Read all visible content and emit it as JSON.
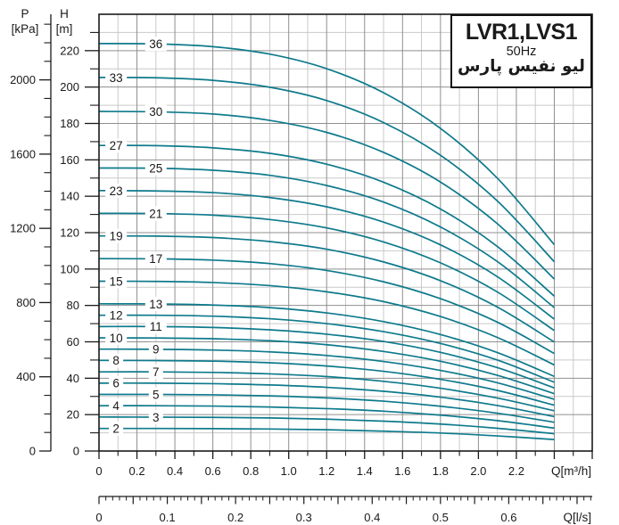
{
  "title_box": {
    "model": "LVR1,LVS1",
    "frequency": "50Hz",
    "brand": "لیو نفیس پارس"
  },
  "axes": {
    "pressure": {
      "name": "P",
      "unit": "[kPa]",
      "tick_labels": [
        0,
        400,
        800,
        1200,
        1600,
        2000
      ],
      "minor_step": 100,
      "minor_max": 2300
    },
    "head": {
      "name": "H",
      "unit": "[m]",
      "tick_labels": [
        0,
        20,
        40,
        60,
        80,
        100,
        120,
        140,
        160,
        180,
        200,
        220
      ],
      "minor_step": 10,
      "minor_max": 230
    },
    "flow_m3h": {
      "label": "Q[m³/h]",
      "tick_labels": [
        "0",
        "0.2",
        "0.4",
        "0.6",
        "0.8",
        "1.0",
        "1.2",
        "1.4",
        "1.6",
        "1.8",
        "2.0",
        "2.2"
      ],
      "label_step": 0.2,
      "minor_step": 0.1,
      "axis_max": 2.6
    },
    "flow_ls": {
      "label": "Q[l/s]",
      "tick_labels": [
        "0",
        "0.1",
        "0.2",
        "0.3",
        "0.4",
        "0.5",
        "0.6"
      ],
      "label_step": 0.1,
      "minor_step": 0.01,
      "minor_max": 0.72
    }
  },
  "chart_data": {
    "type": "line",
    "title": "LVR1,LVS1 50Hz",
    "xlabel": "Q[m³/h]",
    "x2label": "Q[l/s]",
    "ylabel": "H [m]",
    "y2label": "P [kPa]",
    "xlim": [
      0,
      2.6
    ],
    "ylim": [
      0,
      240
    ],
    "grid": "on",
    "legend": "labels-on-curves",
    "x": [
      0,
      0.3,
      0.6,
      0.9,
      1.2,
      1.5,
      1.8,
      2.1,
      2.4
    ],
    "series": [
      {
        "name": "2",
        "stages": 2,
        "label_q": 0.09,
        "values": [
          12.4,
          12.4,
          12.3,
          12.1,
          11.7,
          10.9,
          9.9,
          8.3,
          6.3
        ]
      },
      {
        "name": "3",
        "stages": 3,
        "label_q": 0.3,
        "values": [
          18.7,
          18.6,
          18.5,
          18.2,
          17.5,
          16.4,
          14.8,
          12.5,
          9.5
        ]
      },
      {
        "name": "4",
        "stages": 4,
        "label_q": 0.09,
        "values": [
          24.9,
          24.9,
          24.7,
          24.2,
          23.3,
          21.9,
          19.7,
          16.7,
          12.6
        ]
      },
      {
        "name": "5",
        "stages": 5,
        "label_q": 0.3,
        "values": [
          31.1,
          31.1,
          30.9,
          30.3,
          29.2,
          27.4,
          24.6,
          20.8,
          15.8
        ]
      },
      {
        "name": "6",
        "stages": 6,
        "label_q": 0.09,
        "values": [
          37.3,
          37.3,
          37.0,
          36.3,
          35.0,
          32.8,
          29.6,
          25.0,
          18.9
        ]
      },
      {
        "name": "7",
        "stages": 7,
        "label_q": 0.3,
        "values": [
          43.5,
          43.5,
          43.2,
          42.4,
          40.9,
          38.3,
          34.5,
          29.1,
          22.1
        ]
      },
      {
        "name": "8",
        "stages": 8,
        "label_q": 0.09,
        "values": [
          49.8,
          49.7,
          49.4,
          48.5,
          46.7,
          43.8,
          39.4,
          33.3,
          25.2
        ]
      },
      {
        "name": "9",
        "stages": 9,
        "label_q": 0.3,
        "values": [
          56.0,
          55.9,
          55.5,
          54.5,
          52.5,
          49.2,
          44.3,
          37.5,
          28.4
        ]
      },
      {
        "name": "10",
        "stages": 10,
        "label_q": 0.09,
        "values": [
          62.2,
          62.1,
          61.7,
          60.6,
          58.4,
          54.7,
          49.3,
          41.6,
          31.5
        ]
      },
      {
        "name": "11",
        "stages": 11,
        "label_q": 0.3,
        "values": [
          68.4,
          68.4,
          67.9,
          66.6,
          64.2,
          60.2,
          54.2,
          45.8,
          34.7
        ]
      },
      {
        "name": "12",
        "stages": 12,
        "label_q": 0.09,
        "values": [
          74.6,
          74.6,
          74.1,
          72.7,
          70.0,
          65.6,
          59.1,
          50.0,
          37.8
        ]
      },
      {
        "name": "13",
        "stages": 13,
        "label_q": 0.3,
        "values": [
          80.9,
          80.8,
          80.2,
          78.8,
          75.9,
          71.1,
          64.0,
          54.1,
          41.0
        ]
      },
      {
        "name": "15",
        "stages": 15,
        "label_q": 0.09,
        "values": [
          93.3,
          93.2,
          92.6,
          90.9,
          87.5,
          82.1,
          73.9,
          62.4,
          47.3
        ]
      },
      {
        "name": "17",
        "stages": 17,
        "label_q": 0.3,
        "values": [
          105.7,
          105.6,
          104.9,
          103.0,
          99.2,
          93.0,
          83.7,
          70.8,
          53.6
        ]
      },
      {
        "name": "19",
        "stages": 19,
        "label_q": 0.09,
        "values": [
          118.2,
          118.1,
          117.3,
          115.1,
          110.9,
          103.9,
          93.6,
          79.1,
          59.9
        ]
      },
      {
        "name": "21",
        "stages": 21,
        "label_q": 0.3,
        "values": [
          130.6,
          130.5,
          129.6,
          127.2,
          122.6,
          114.9,
          103.4,
          87.4,
          66.2
        ]
      },
      {
        "name": "23",
        "stages": 23,
        "label_q": 0.09,
        "values": [
          143.1,
          142.9,
          142.0,
          139.3,
          134.2,
          125.8,
          113.3,
          95.8,
          72.5
        ]
      },
      {
        "name": "25",
        "stages": 25,
        "label_q": 0.3,
        "values": [
          155.5,
          155.4,
          154.3,
          151.5,
          145.9,
          136.8,
          123.1,
          104.1,
          78.8
        ]
      },
      {
        "name": "27",
        "stages": 27,
        "label_q": 0.09,
        "values": [
          167.9,
          167.8,
          166.6,
          163.6,
          157.6,
          147.7,
          133.0,
          112.4,
          85.1
        ]
      },
      {
        "name": "30",
        "stages": 30,
        "label_q": 0.3,
        "values": [
          186.6,
          186.4,
          185.2,
          181.7,
          175.1,
          164.1,
          147.8,
          124.9,
          94.5
        ]
      },
      {
        "name": "33",
        "stages": 33,
        "label_q": 0.09,
        "values": [
          205.3,
          205.1,
          203.7,
          199.9,
          192.6,
          180.5,
          162.5,
          137.4,
          104.0
        ]
      },
      {
        "name": "36",
        "stages": 36,
        "label_q": 0.3,
        "values": [
          223.9,
          223.7,
          222.2,
          218.1,
          210.1,
          196.9,
          177.3,
          149.9,
          113.4
        ]
      }
    ]
  },
  "style": {
    "curve_color": "#0e7a8c",
    "grid_minor": "#c9c9c9",
    "grid_major": "#8f8f8f",
    "axis_color": "#1a1a1a",
    "text_color": "#1a1a1a",
    "background": "#ffffff"
  }
}
